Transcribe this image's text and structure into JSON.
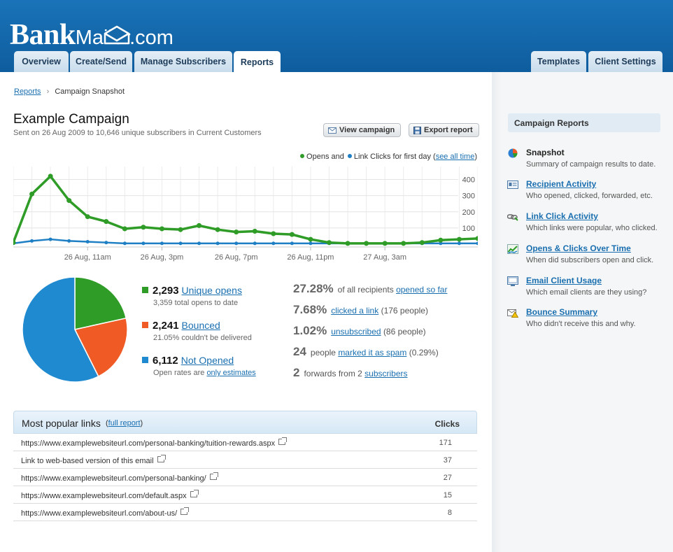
{
  "brand": {
    "logo_bold": "Bank",
    "logo_light": "Mailer.com"
  },
  "nav": {
    "tabs": [
      {
        "label": "Overview"
      },
      {
        "label": "Create/Send"
      },
      {
        "label": "Manage Subscribers"
      },
      {
        "label": "Reports",
        "active": true
      }
    ],
    "right_tabs": [
      {
        "label": "Templates"
      },
      {
        "label": "Client Settings"
      }
    ]
  },
  "breadcrumb": {
    "root": "Reports",
    "separator": "›",
    "current": "Campaign Snapshot"
  },
  "campaign": {
    "title": "Example Campaign",
    "subtitle": "Sent on 26 Aug 2009 to 10,646 unique subscribers in Current Customers"
  },
  "buttons": {
    "view_campaign": "View campaign",
    "export_report": "Export report"
  },
  "legend": {
    "opens": "Opens and",
    "clicks": "Link Clicks for first day",
    "see_all_pre": "(",
    "see_all": "see all time",
    "see_all_post": ")"
  },
  "chart_data": {
    "type": "line",
    "x_tick_labels": [
      "26 Aug, 11am",
      "26 Aug, 3pm",
      "26 Aug, 7pm",
      "26 Aug, 11pm",
      "27 Aug, 3am"
    ],
    "y_tick_labels": [
      "400",
      "300",
      "200",
      "100"
    ],
    "ylim": [
      0,
      480
    ],
    "grid": true,
    "series": [
      {
        "name": "Opens",
        "color": "#2e9c26",
        "values": [
          10,
          310,
          420,
          270,
          170,
          140,
          95,
          105,
          95,
          90,
          115,
          90,
          75,
          80,
          65,
          60,
          30,
          10,
          5,
          5,
          5,
          5,
          10,
          25,
          30,
          35
        ]
      },
      {
        "name": "Link Clicks",
        "color": "#1f7fc4",
        "values": [
          5,
          20,
          30,
          20,
          15,
          10,
          5,
          5,
          5,
          5,
          5,
          5,
          5,
          5,
          5,
          5,
          5,
          5,
          5,
          5,
          5,
          5,
          5,
          5,
          5,
          5
        ]
      }
    ]
  },
  "pie": {
    "slices": [
      {
        "name": "Unique opens",
        "value": 2293,
        "color": "#2e9c26"
      },
      {
        "name": "Bounced",
        "value": 2241,
        "color": "#f05a24"
      },
      {
        "name": "Not Opened",
        "value": 6112,
        "color": "#1f8ad0"
      }
    ]
  },
  "stats": {
    "opens": {
      "value": "2,293",
      "label": "Unique opens",
      "sub": "3,359 total opens to date",
      "color": "#2e9c26"
    },
    "bounced": {
      "value": "2,241",
      "label": "Bounced",
      "sub": "21.05% couldn't be delivered",
      "color": "#f05a24"
    },
    "not_opened": {
      "value": "6,112",
      "label": "Not Opened",
      "sub_pre": "Open rates are",
      "sub_link": "only estimates",
      "color": "#1f8ad0"
    }
  },
  "right_stats": [
    {
      "value": "27.28%",
      "pre": "of all recipients",
      "link": "opened so far",
      "post": ""
    },
    {
      "value": "7.68%",
      "pre": "",
      "link": "clicked a link",
      "post": "(176 people)"
    },
    {
      "value": "1.02%",
      "pre": "",
      "link": "unsubscribed",
      "post": "(86 people)"
    },
    {
      "value": "24",
      "pre": "people",
      "link": "marked it as spam",
      "post": "(0.29%)"
    },
    {
      "value": "2",
      "pre": "forwards from 2",
      "link": "subscribers",
      "post": ""
    }
  ],
  "links_table": {
    "title": "Most popular links",
    "full_report_pre": "(",
    "full_report": "full report",
    "full_report_post": ")",
    "clicks_header": "Clicks",
    "rows": [
      {
        "url": "https://www.examplewebsiteurl.com/personal-banking/tuition-rewards.aspx",
        "clicks": "171"
      },
      {
        "url": "Link to web-based version of this email",
        "clicks": "37"
      },
      {
        "url": "https://www.examplewebsiteurl.com/personal-banking/",
        "clicks": "27"
      },
      {
        "url": "https://www.examplewebsiteurl.com/default.aspx",
        "clicks": "15"
      },
      {
        "url": "https://www.examplewebsiteurl.com/about-us/",
        "clicks": "8"
      }
    ]
  },
  "sidebar": {
    "heading": "Campaign Reports",
    "items": [
      {
        "label": "Snapshot",
        "desc": "Summary of campaign results to date.",
        "icon": "pie-chart-icon",
        "current": true
      },
      {
        "label": "Recipient Activity",
        "desc": "Who opened, clicked, forwarded, etc.",
        "icon": "contact-card-icon"
      },
      {
        "label": "Link Click Activity",
        "desc": "Which links were popular, who clicked.",
        "icon": "link-chain-icon"
      },
      {
        "label": "Opens & Clicks Over Time",
        "desc": "When did subscribers open and click.",
        "icon": "trend-chart-icon"
      },
      {
        "label": "Email Client Usage",
        "desc": "Which email clients are they using?",
        "icon": "email-client-icon"
      },
      {
        "label": "Bounce Summary",
        "desc": "Who didn't receive this and why.",
        "icon": "bounce-warning-icon"
      }
    ]
  }
}
